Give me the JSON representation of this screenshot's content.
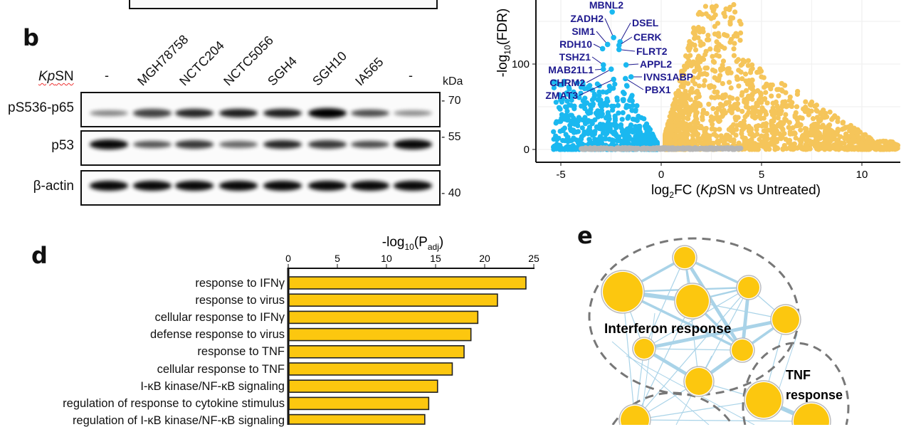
{
  "panels": {
    "b": "b",
    "d": "d",
    "e": "e"
  },
  "western_blot": {
    "treatment_label_italic": "Kp",
    "treatment_label_rest": "SN",
    "lanes": [
      "-",
      "MGH78758",
      "NCTC204",
      "NCTC5056",
      "SGH4",
      "SGH10",
      "IA565",
      "-"
    ],
    "kda_label": "kDa",
    "markers": [
      "70",
      "55",
      "40"
    ],
    "blots": [
      {
        "label": "pS536-p65",
        "band_intensity": [
          0.3,
          0.65,
          0.8,
          0.85,
          0.85,
          1.0,
          0.6,
          0.25
        ]
      },
      {
        "label": "p53",
        "band_intensity": [
          0.95,
          0.55,
          0.7,
          0.45,
          0.8,
          0.7,
          0.6,
          0.95
        ]
      },
      {
        "label": "β-actin",
        "band_intensity": [
          0.95,
          0.95,
          0.95,
          0.95,
          0.95,
          0.95,
          0.95,
          0.95
        ]
      }
    ]
  },
  "chart_data": [
    {
      "type": "scatter",
      "title": "",
      "xlabel_pre": "log",
      "xlabel_sub": "2",
      "xlabel_mid": "FC (",
      "xlabel_italic": "Kp",
      "xlabel_post": "SN vs Untreated)",
      "ylabel_pre": "-log",
      "ylabel_sub": "10",
      "ylabel_post": "(FDR)",
      "x_ticks": [
        "-5",
        "0",
        "5",
        "10"
      ],
      "y_ticks": [
        "0",
        "100"
      ],
      "xlim": [
        -6.2,
        12
      ],
      "ylim": [
        -15,
        175
      ],
      "grid": true,
      "colors": {
        "down": "#1ab8f0",
        "up": "#f5c55a",
        "ns": "#b5b5b5",
        "label": "#1f1a8f"
      },
      "labeled_points": [
        {
          "gene": "MBNL2",
          "x": -2.44,
          "y": 161
        },
        {
          "gene": "ZADH2",
          "x": -2.37,
          "y": 131
        },
        {
          "gene": "SIM1",
          "x": -2.67,
          "y": 123
        },
        {
          "gene": "RDH10",
          "x": -2.92,
          "y": 118
        },
        {
          "gene": "TSHZ1",
          "x": -2.88,
          "y": 99
        },
        {
          "gene": "MAB21L1",
          "x": -2.88,
          "y": 94
        },
        {
          "gene": "CHRM2",
          "x": -2.49,
          "y": 94
        },
        {
          "gene": "ZMAT3",
          "x": -2.37,
          "y": 82
        },
        {
          "gene": "DSEL",
          "x": -2.05,
          "y": 126
        },
        {
          "gene": "CERK",
          "x": -2.1,
          "y": 122
        },
        {
          "gene": "FLRT2",
          "x": -2.1,
          "y": 117
        },
        {
          "gene": "APPL2",
          "x": -1.75,
          "y": 99
        },
        {
          "gene": "IVNS1ABP",
          "x": -1.5,
          "y": 85
        },
        {
          "gene": "PBX1",
          "x": -1.78,
          "y": 83
        }
      ]
    },
    {
      "type": "bar",
      "orientation": "horizontal",
      "title_pre": "-log",
      "title_sub": "10",
      "title_mid": "(P",
      "title_sub2": "adj",
      "title_post": ")",
      "x_ticks": [
        "0",
        "5",
        "10",
        "15",
        "20",
        "25"
      ],
      "xlim": [
        0,
        25
      ],
      "bar_color": "#fcc70f",
      "categories": [
        "response to IFNγ",
        "response to virus",
        "cellular response to IFNγ",
        "defense response to virus",
        "response to TNF",
        "cellular response to TNF",
        "I-κB kinase/NF-κB signaling",
        "regulation of response to cytokine stimulus",
        "regulation of I-κB kinase/NF-κB signaling"
      ],
      "values": [
        24.2,
        21.3,
        19.3,
        18.6,
        17.9,
        16.7,
        15.2,
        14.3,
        13.9
      ]
    }
  ],
  "network": {
    "cluster_labels": {
      "interferon": "Interferon response",
      "tnf_1": "TNF",
      "tnf_2": "response"
    },
    "node_color": "#fcc70f",
    "edge_color": "#a9d3e8",
    "nodes": [
      {
        "id": 0,
        "size": 15
      },
      {
        "id": 1,
        "size": 28
      },
      {
        "id": 2,
        "size": 23
      },
      {
        "id": 3,
        "size": 15
      },
      {
        "id": 4,
        "size": 19
      },
      {
        "id": 5,
        "size": 14
      },
      {
        "id": 6,
        "size": 15
      },
      {
        "id": 7,
        "size": 19
      },
      {
        "id": 8,
        "size": 25
      },
      {
        "id": 9,
        "size": 20
      },
      {
        "id": 10,
        "size": 25
      }
    ],
    "edges": [
      [
        0,
        1,
        3
      ],
      [
        0,
        2,
        2
      ],
      [
        0,
        3,
        3
      ],
      [
        0,
        6,
        4
      ],
      [
        0,
        5,
        1
      ],
      [
        0,
        7,
        1
      ],
      [
        1,
        2,
        5
      ],
      [
        1,
        3,
        2
      ],
      [
        1,
        6,
        3
      ],
      [
        1,
        5,
        1
      ],
      [
        2,
        3,
        2
      ],
      [
        2,
        6,
        3
      ],
      [
        2,
        4,
        1
      ],
      [
        3,
        4,
        1
      ],
      [
        3,
        6,
        4
      ],
      [
        3,
        5,
        1
      ],
      [
        3,
        7,
        1
      ],
      [
        4,
        5,
        4
      ],
      [
        4,
        6,
        3
      ],
      [
        4,
        8,
        1
      ],
      [
        5,
        7,
        4
      ],
      [
        5,
        6,
        1
      ],
      [
        5,
        9,
        1
      ],
      [
        6,
        7,
        4
      ],
      [
        7,
        8,
        1
      ],
      [
        7,
        9,
        1
      ],
      [
        8,
        10,
        5
      ],
      [
        8,
        9,
        1
      ],
      [
        9,
        10,
        1
      ],
      [
        1,
        9,
        1
      ],
      [
        2,
        9,
        1
      ],
      [
        3,
        9,
        1
      ]
    ]
  }
}
